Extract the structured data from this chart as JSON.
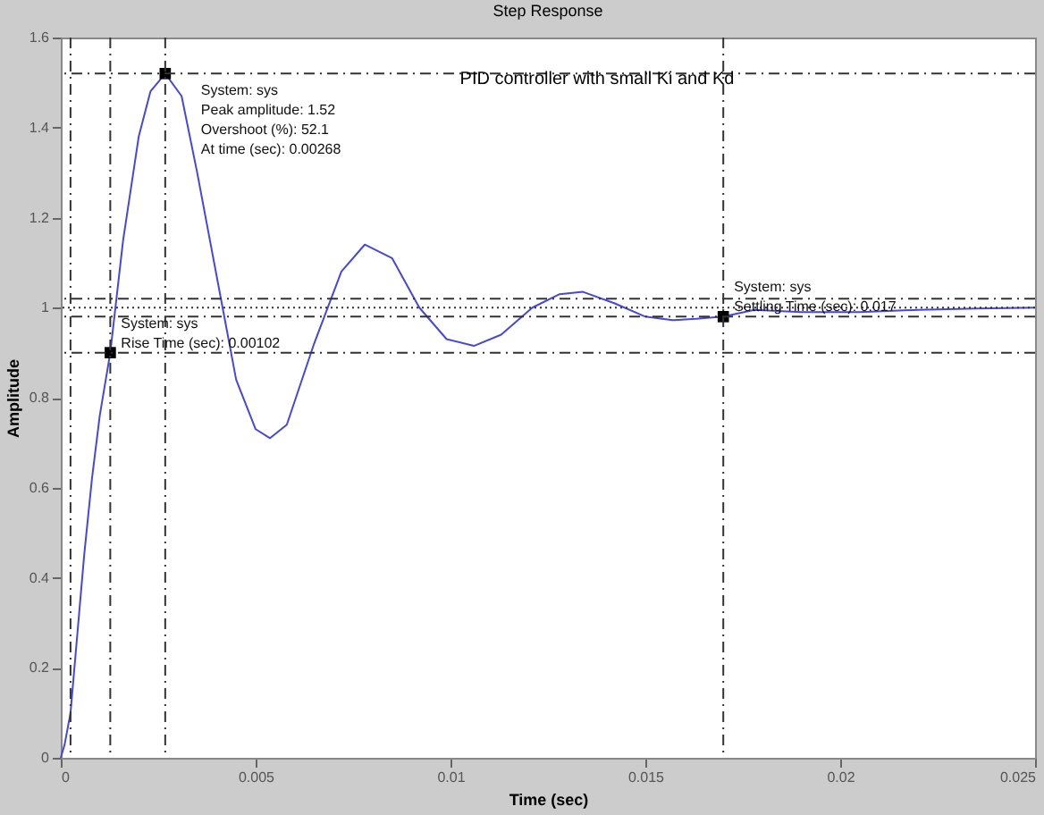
{
  "chart_data": {
    "type": "line",
    "title": "Step Response",
    "xlabel": "Time (sec)",
    "ylabel": "Amplitude",
    "xlim": [
      0,
      0.025
    ],
    "xticks": [
      0,
      0.005,
      0.01,
      0.015,
      0.02,
      0.025
    ],
    "ylim": [
      0,
      1.6
    ],
    "yticks": [
      0,
      0.2,
      0.4,
      0.6,
      0.8,
      1,
      1.2,
      1.4,
      1.6
    ],
    "grid": false,
    "series": [
      {
        "color": "#4646e0",
        "x": [
          0,
          0.0001,
          0.00025,
          0.0004,
          0.0006,
          0.0008,
          0.001,
          0.00127,
          0.0016,
          0.002,
          0.0023,
          0.00268,
          0.0031,
          0.0035,
          0.004,
          0.0045,
          0.005,
          0.00537,
          0.0058,
          0.0065,
          0.0072,
          0.0078,
          0.0085,
          0.0092,
          0.0099,
          0.0106,
          0.0113,
          0.0121,
          0.0128,
          0.0134,
          0.0142,
          0.015,
          0.0157,
          0.0163,
          0.017,
          0.0178,
          0.019,
          0.0205,
          0.022,
          0.0235,
          0.025
        ],
        "values": [
          0,
          0.03,
          0.1,
          0.25,
          0.45,
          0.62,
          0.76,
          0.9,
          1.15,
          1.38,
          1.48,
          1.52,
          1.47,
          1.3,
          1.07,
          0.84,
          0.73,
          0.71,
          0.74,
          0.92,
          1.08,
          1.14,
          1.11,
          1.0,
          0.93,
          0.915,
          0.94,
          1.0,
          1.03,
          1.035,
          1.01,
          0.98,
          0.972,
          0.975,
          0.98,
          0.995,
          0.99,
          0.99,
          0.995,
          0.998,
          1.0
        ]
      },
      {
        "type": "scatter",
        "color": "#000000",
        "marker": "square",
        "x": [
          0.00268,
          0.00127,
          0.017
        ],
        "values": [
          1.52,
          0.9,
          0.98
        ]
      }
    ],
    "ref_lines": [
      {
        "axis": "y",
        "value": 1.02,
        "line_style": "dashed",
        "color": "#333333"
      },
      {
        "axis": "y",
        "value": 0.98,
        "line_style": "dashed",
        "color": "#333333"
      },
      {
        "axis": "y",
        "value": 1,
        "line_style": "dotted",
        "color": "#333333"
      },
      {
        "axis": "y",
        "value": 1.52,
        "line_style": "dashed",
        "color": "#333333"
      },
      {
        "axis": "y",
        "value": 0.9,
        "line_style": "dashed",
        "color": "#333333"
      },
      {
        "axis": "x",
        "value": 0.00025,
        "line_style": "dashed",
        "color": "#333333"
      },
      {
        "axis": "x",
        "value": 0.00127,
        "line_style": "dashed",
        "color": "#333333"
      },
      {
        "axis": "x",
        "value": 0.00268,
        "line_style": "dashed",
        "color": "#333333"
      },
      {
        "axis": "x",
        "value": 0.017,
        "line_style": "dashed",
        "color": "#333333"
      }
    ],
    "annotations": [
      "PID controller with small Ki and Kd",
      {
        "text": "System: sys\nPeak amplitude: 1.52\nOvershoot (%): 52.1\nAt time (sec): 0.00268",
        "x": 0.00268,
        "y": 1.52
      },
      {
        "text": "System: sys\nRise Time (sec): 0.00102",
        "x": 0.00127,
        "y": 0.9
      },
      {
        "text": "System: sys\nSettling Time (sec): 0.017",
        "x": 0.017,
        "y": 0.98
      }
    ]
  }
}
